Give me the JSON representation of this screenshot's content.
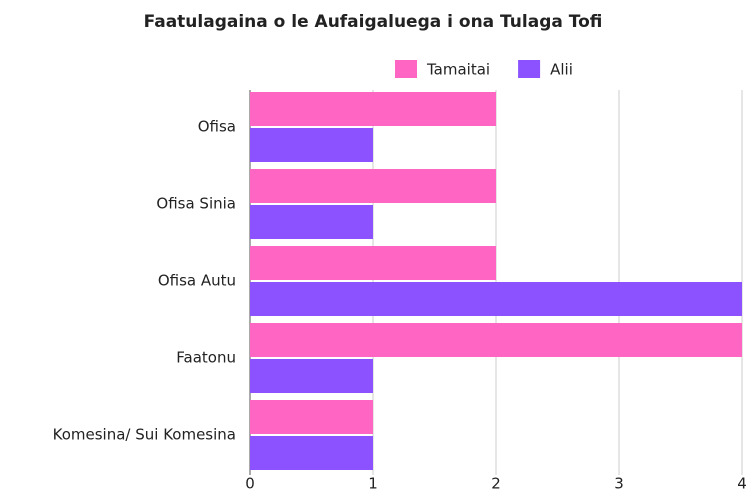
{
  "chart_data": {
    "type": "hbar",
    "title": "Faatulagaina o le Aufaigaluega i ona Tulaga Tofi",
    "categories": [
      "Ofisa",
      "Ofisa Sinia",
      "Ofisa Autu",
      "Faatonu",
      "Komesina/ Sui Komesina"
    ],
    "series": [
      {
        "name": "Tamaitai",
        "color": "#ff66c4",
        "values": [
          2,
          2,
          2,
          4,
          1
        ]
      },
      {
        "name": "Alii",
        "color": "#8c52ff",
        "values": [
          1,
          1,
          4,
          1,
          1
        ]
      }
    ],
    "xlim": [
      0,
      4
    ],
    "xticks": [
      0,
      1,
      2,
      3,
      4
    ],
    "grid": true,
    "legend": "top"
  }
}
